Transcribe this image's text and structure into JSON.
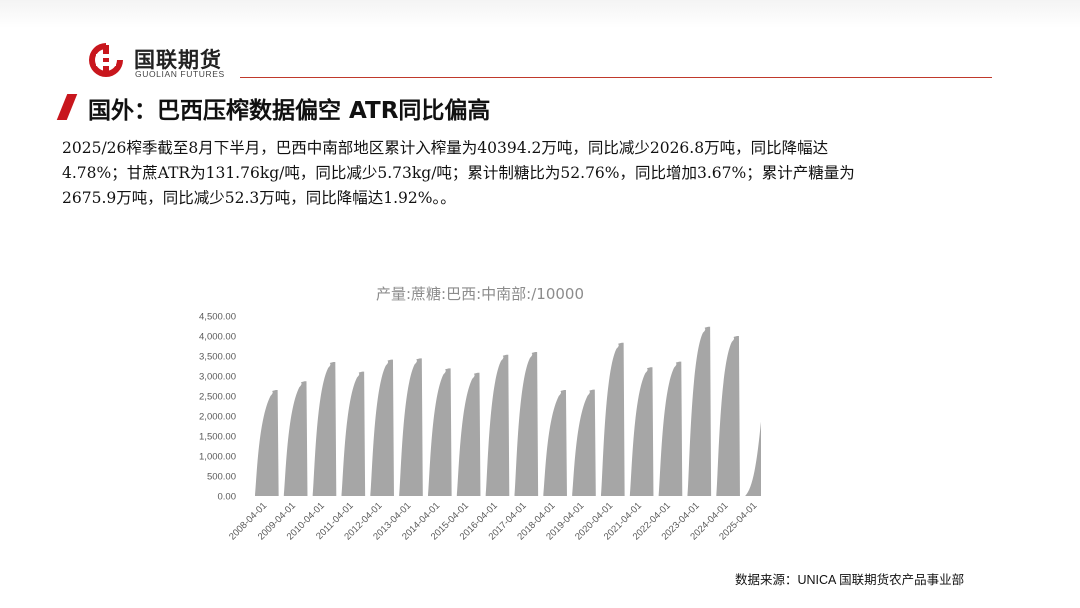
{
  "header": {
    "logo_cn": "国联期货",
    "logo_en": "GUOLIAN FUTURES"
  },
  "section": {
    "title": "国外：巴西压榨数据偏空 ATR同比偏高"
  },
  "paragraph": {
    "lines": [
      "2025/26榨季截至8月下半月，巴西中南部地区累计入榨量为40394.2万吨，同比减少2026.8万吨，同比降幅达",
      "4.78%；甘蔗ATR为131.76kg/吨，同比减少5.73kg/吨；累计制糖比为52.76%，同比增加3.67%；累计产糖量为",
      "2675.9万吨，同比减少52.3万吨，同比降幅达1.92%。。"
    ]
  },
  "chart_data": {
    "type": "area",
    "title": "产量:蔗糖:巴西:中南部:/10000",
    "xlabel": "",
    "ylabel": "",
    "ylim": [
      0,
      4500
    ],
    "y_ticks": [
      "0.00",
      "500.00",
      "1,000.00",
      "1,500.00",
      "2,000.00",
      "2,500.00",
      "3,000.00",
      "3,500.00",
      "4,000.00",
      "4,500.00"
    ],
    "x_ticks": [
      "2008-04-01",
      "2009-04-01",
      "2010-04-01",
      "2011-04-01",
      "2012-04-01",
      "2013-04-01",
      "2014-04-01",
      "2015-04-01",
      "2016-04-01",
      "2017-04-01",
      "2018-04-01",
      "2019-04-01",
      "2020-04-01",
      "2021-04-01",
      "2022-04-01",
      "2023-04-01",
      "2024-04-01",
      "2025-04-01"
    ],
    "grid": false,
    "legend": "none",
    "color": "#a6a6a6",
    "series": [
      {
        "seasons": [
          {
            "start": "2008-04-01",
            "peak": 2650
          },
          {
            "start": "2009-04-01",
            "peak": 2870
          },
          {
            "start": "2010-04-01",
            "peak": 3350
          },
          {
            "start": "2011-04-01",
            "peak": 3110
          },
          {
            "start": "2012-04-01",
            "peak": 3410
          },
          {
            "start": "2013-04-01",
            "peak": 3440
          },
          {
            "start": "2014-04-01",
            "peak": 3190
          },
          {
            "start": "2015-04-01",
            "peak": 3080
          },
          {
            "start": "2016-04-01",
            "peak": 3530
          },
          {
            "start": "2017-04-01",
            "peak": 3600
          },
          {
            "start": "2018-04-01",
            "peak": 2650
          },
          {
            "start": "2019-04-01",
            "peak": 2660
          },
          {
            "start": "2020-04-01",
            "peak": 3830
          },
          {
            "start": "2021-04-01",
            "peak": 3220
          },
          {
            "start": "2022-04-01",
            "peak": 3360
          },
          {
            "start": "2023-04-01",
            "peak": 4230
          },
          {
            "start": "2024-04-01",
            "peak": 4000
          },
          {
            "start": "2025-04-01",
            "peak": 1860,
            "partial": true
          }
        ]
      }
    ]
  },
  "source": {
    "text": "数据来源：UNICA 国联期货农产品事业部"
  }
}
